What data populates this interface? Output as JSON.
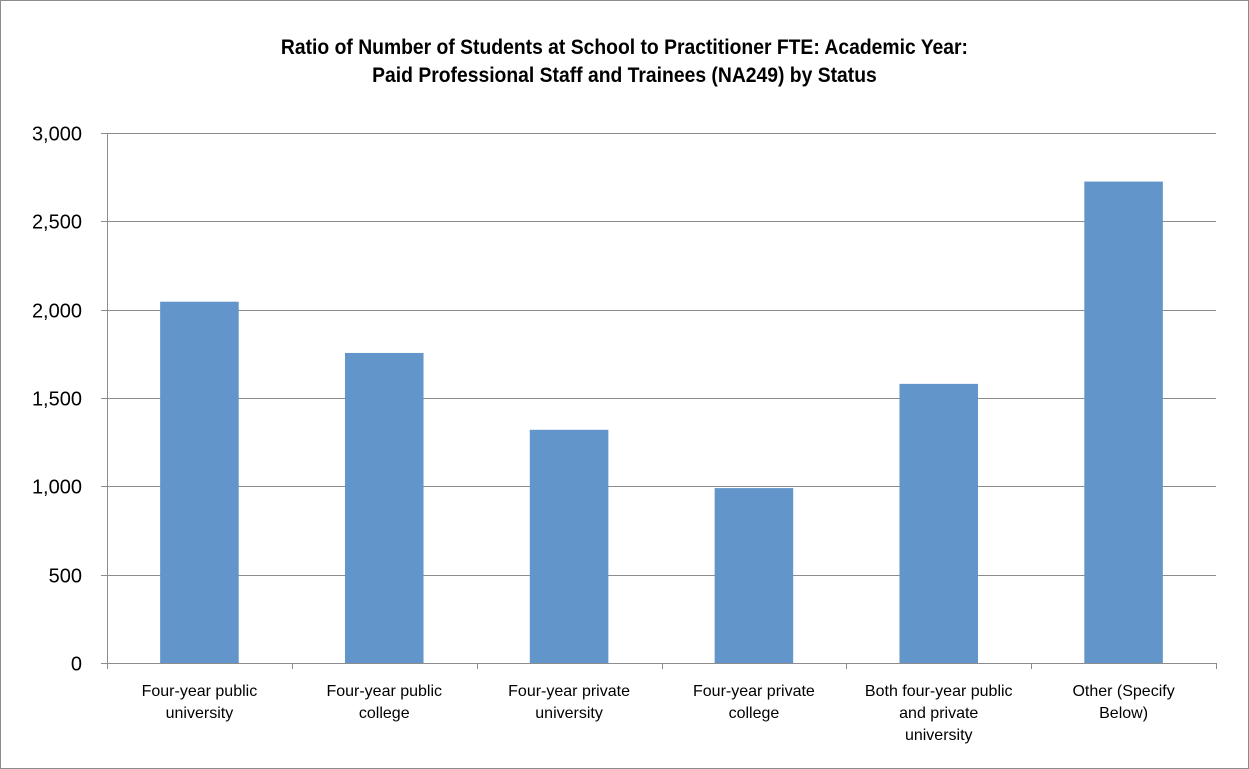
{
  "chart_data": {
    "type": "bar",
    "title_lines": [
      "Ratio of Number of Students at School to Practitioner FTE: Academic Year:",
      "Paid Professional Staff and Trainees (NA249) by Status"
    ],
    "categories": [
      [
        "Four-year public",
        "university"
      ],
      [
        "Four-year public",
        "college"
      ],
      [
        "Four-year private",
        "university"
      ],
      [
        "Four-year private",
        "college"
      ],
      [
        "Both four-year public",
        "and private",
        "university"
      ],
      [
        "Other (Specify",
        "Below)"
      ]
    ],
    "values": [
      2045,
      1755,
      1320,
      990,
      1580,
      2725
    ],
    "ylim": [
      0,
      3000
    ],
    "yticks": [
      0,
      500,
      1000,
      1500,
      2000,
      2500,
      3000
    ],
    "ytick_labels": [
      "0",
      "500",
      "1,000",
      "1,500",
      "2,000",
      "2,500",
      "3,000"
    ],
    "xlabel": "",
    "ylabel": "",
    "grid": true,
    "legend": false,
    "colors": {
      "bar": "#6295c9",
      "grid": "#8c8c8c",
      "axis": "#8c8c8c"
    }
  }
}
